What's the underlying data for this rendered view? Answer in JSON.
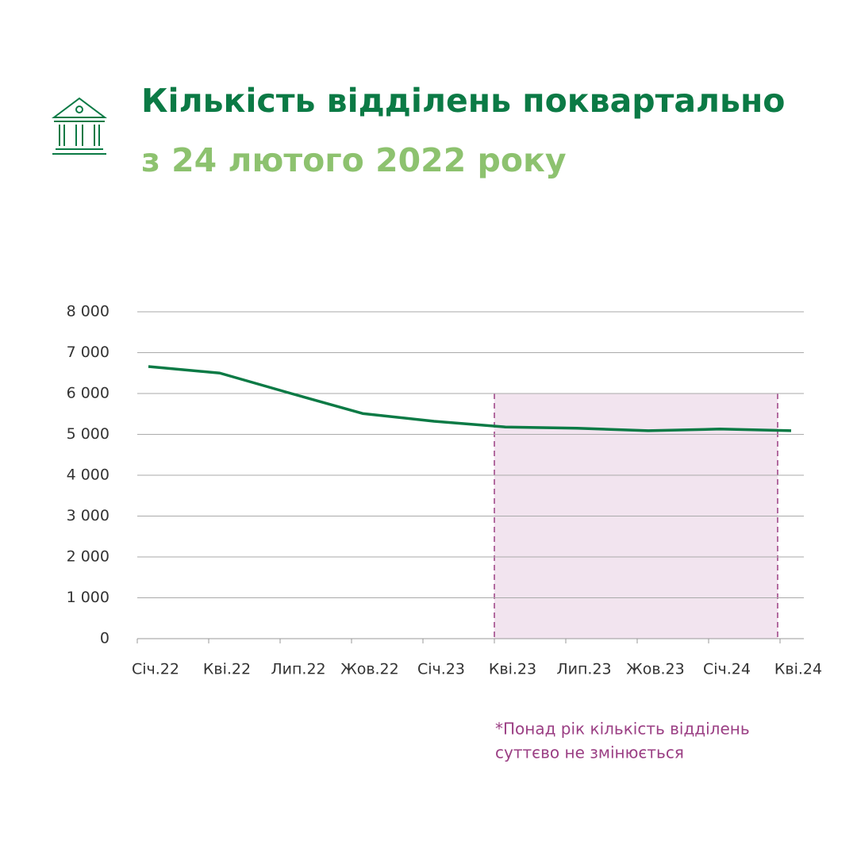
{
  "chart_data": {
    "type": "line",
    "title": "Кількість відділень поквартально",
    "subtitle": "з 24 лютого 2022 року",
    "categories": [
      "Січ.22",
      "Кві.22",
      "Лип.22",
      "Жов.22",
      "Січ.23",
      "Кві.23",
      "Лип.23",
      "Жов.23",
      "Січ.24",
      "Кві.24"
    ],
    "series": [
      {
        "color": "#0b7a45",
        "values": [
          6660,
          6500,
          6000,
          5510,
          5320,
          5180,
          5150,
          5090,
          5130,
          5090
        ]
      }
    ],
    "ylim": [
      0,
      8000
    ],
    "yticks": [
      0,
      {
        "value": 1000,
        "label": "1 000"
      },
      {
        "value": 2000,
        "label": "2 000"
      },
      {
        "value": 3000,
        "label": "3 000"
      },
      {
        "value": 4000,
        "label": "4 000"
      },
      {
        "value": 5000,
        "label": "5 000"
      },
      {
        "value": 6000,
        "label": "6 000"
      },
      {
        "value": 7000,
        "label": "7 000"
      },
      {
        "value": 8000,
        "label": "8 000"
      }
    ],
    "grid": true,
    "highlight": {
      "from": "Кві.23",
      "to": "Кві.24",
      "top": 6000,
      "color": "#f2e4ef",
      "border_color": "#9b3f84"
    },
    "annotation": [
      "*Понад рік кількість відділень",
      "суттєво не змінюється"
    ]
  }
}
